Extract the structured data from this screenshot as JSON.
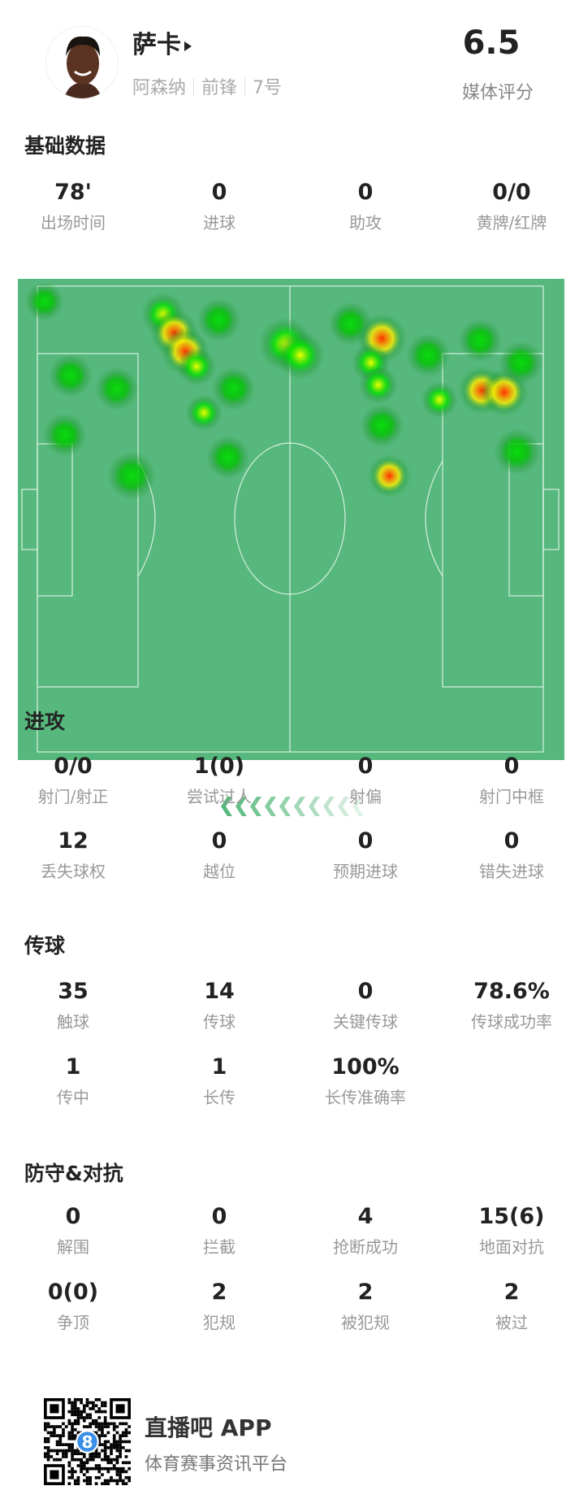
{
  "player": {
    "name": "萨卡",
    "team": "阿森纳",
    "position": "前锋",
    "number": "7号",
    "rating": "6.5",
    "rating_label": "媒体评分"
  },
  "sections": {
    "basic": {
      "title": "基础数据",
      "rows": [
        [
          {
            "value": "78'",
            "label": "出场时间"
          },
          {
            "value": "0",
            "label": "进球"
          },
          {
            "value": "0",
            "label": "助攻"
          },
          {
            "value": "0/0",
            "label": "黄牌/红牌"
          }
        ]
      ]
    },
    "attack": {
      "title": "进攻",
      "rows": [
        [
          {
            "value": "0/0",
            "label": "射门/射正"
          },
          {
            "value": "1(0)",
            "label": "尝试过人"
          },
          {
            "value": "0",
            "label": "射偏"
          },
          {
            "value": "0",
            "label": "射门中框"
          }
        ],
        [
          {
            "value": "12",
            "label": "丢失球权"
          },
          {
            "value": "0",
            "label": "越位"
          },
          {
            "value": "0",
            "label": "预期进球"
          },
          {
            "value": "0",
            "label": "错失进球"
          }
        ]
      ]
    },
    "passing": {
      "title": "传球",
      "rows": [
        [
          {
            "value": "35",
            "label": "触球"
          },
          {
            "value": "14",
            "label": "传球"
          },
          {
            "value": "0",
            "label": "关键传球"
          },
          {
            "value": "78.6%",
            "label": "传球成功率"
          }
        ],
        [
          {
            "value": "1",
            "label": "传中"
          },
          {
            "value": "1",
            "label": "长传"
          },
          {
            "value": "100%",
            "label": "长传准确率"
          }
        ]
      ]
    },
    "defense": {
      "title": "防守&对抗",
      "rows": [
        [
          {
            "value": "0",
            "label": "解围"
          },
          {
            "value": "0",
            "label": "拦截"
          },
          {
            "value": "4",
            "label": "抢断成功"
          },
          {
            "value": "15(6)",
            "label": "地面对抗"
          }
        ],
        [
          {
            "value": "0(0)",
            "label": "争顶"
          },
          {
            "value": "2",
            "label": "犯规"
          },
          {
            "value": "2",
            "label": "被犯规"
          },
          {
            "value": "2",
            "label": "被过"
          }
        ]
      ]
    }
  },
  "heatmap": {
    "pitch_color": "#56b87c",
    "line_color": "#d8f0df",
    "direction": "attacking-left",
    "arrow_color": "#56b87c"
  },
  "footer": {
    "brand": "直播吧 APP",
    "slogan": "体育赛事资讯平台",
    "qr_badge": "8"
  }
}
